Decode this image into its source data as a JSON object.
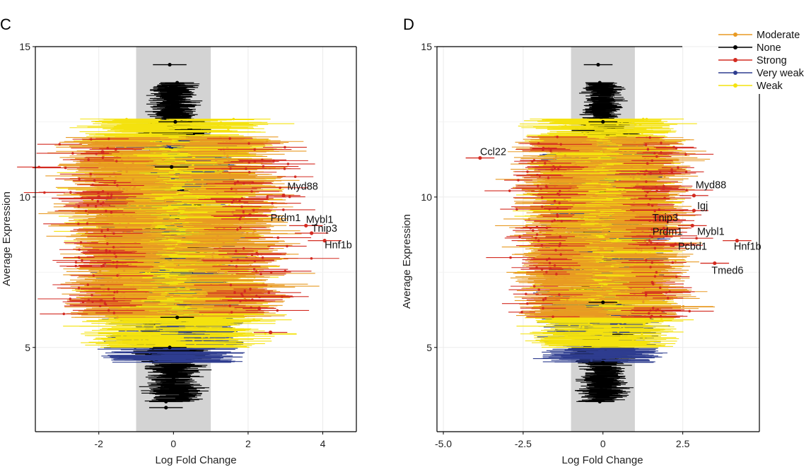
{
  "colors": {
    "background": "#ffffff",
    "band": "#d3d3d3",
    "grid": "#ebebeb",
    "axis": "#000000",
    "Moderate": "#e89a23",
    "None": "#000000",
    "Strong": "#d32a20",
    "Very weak": "#2e3d8f",
    "Weak": "#f4e20f"
  },
  "legend": {
    "position": "top-right",
    "items": [
      "Moderate",
      "None",
      "Strong",
      "Very weak",
      "Weak"
    ]
  },
  "chart_data": [
    {
      "panel": "C",
      "type": "scatter",
      "title": "",
      "xlabel": "Log Fold Change",
      "ylabel": "Average Expression",
      "xlim": [
        -3.7,
        4.9
      ],
      "ylim": [
        2.2,
        15.0
      ],
      "xticks": [
        -2,
        0,
        2,
        4
      ],
      "yticks": [
        5,
        10,
        15
      ],
      "grid": true,
      "shaded_band": [
        -1,
        1
      ],
      "series": [
        {
          "name": "None",
          "points": [
            [
              -0.1,
              14.4
            ],
            [
              0.1,
              13.8
            ],
            [
              0.05,
              12.5
            ],
            [
              -0.05,
              11.0
            ],
            [
              0.1,
              6.0
            ],
            [
              -0.1,
              5.0
            ],
            [
              0.0,
              4.0
            ],
            [
              -0.2,
              3.2
            ],
            [
              -0.2,
              3.0
            ]
          ]
        },
        {
          "name": "Strong",
          "points": [
            [
              2.95,
              10.05
            ],
            [
              3.55,
              9.05
            ],
            [
              3.7,
              8.8
            ],
            [
              4.05,
              8.55
            ],
            [
              2.6,
              5.5
            ],
            [
              2.3,
              6.3
            ],
            [
              -1.9,
              11.5
            ],
            [
              -2.0,
              10.0
            ],
            [
              2.05,
              9.4
            ]
          ]
        }
      ],
      "labels": [
        {
          "text": "Myd88",
          "x": 3.05,
          "y": 10.15,
          "target_x": 2.95,
          "target_y": 10.05
        },
        {
          "text": "Prdm1",
          "x": 2.6,
          "y": 9.1,
          "target_x": 2.6,
          "target_y": 9.1
        },
        {
          "text": "Mybl1",
          "x": 3.55,
          "y": 9.05,
          "target_x": 3.55,
          "target_y": 9.05
        },
        {
          "text": "Tnip3",
          "x": 3.7,
          "y": 8.75,
          "target_x": 3.7,
          "target_y": 8.75
        },
        {
          "text": "Hnf1b",
          "x": 4.05,
          "y": 8.2,
          "target_x": 4.05,
          "target_y": 8.2
        }
      ]
    },
    {
      "panel": "D",
      "type": "scatter",
      "title": "",
      "xlabel": "Log Fold Change",
      "ylabel": "Average Expression",
      "xlim": [
        -5.2,
        4.9
      ],
      "ylim": [
        2.2,
        15.0
      ],
      "xticks": [
        -5.0,
        -2.5,
        0,
        2.5
      ],
      "xticklabels": [
        "-5.0",
        "-2.5",
        "0",
        "2.5"
      ],
      "yticks": [
        5,
        10,
        15
      ],
      "grid": true,
      "shaded_band": [
        -1,
        1
      ],
      "series": [
        {
          "name": "None",
          "points": [
            [
              -0.15,
              14.4
            ],
            [
              -0.1,
              13.8
            ],
            [
              0.0,
              12.5
            ],
            [
              0.0,
              6.5
            ],
            [
              0.0,
              4.5
            ],
            [
              0.0,
              3.5
            ],
            [
              -0.1,
              3.2
            ]
          ]
        },
        {
          "name": "Strong",
          "points": [
            [
              -3.85,
              11.3
            ],
            [
              2.85,
              10.05
            ],
            [
              2.85,
              9.55
            ],
            [
              2.8,
              9.05
            ],
            [
              2.2,
              8.4
            ],
            [
              3.5,
              7.8
            ],
            [
              4.2,
              8.55
            ]
          ]
        }
      ],
      "labels": [
        {
          "text": "Ccl22",
          "x": -3.85,
          "y": 11.3,
          "target_x": -3.85,
          "target_y": 11.3
        },
        {
          "text": "Myd88",
          "x": 2.9,
          "y": 10.2,
          "target_x": 2.85,
          "target_y": 10.05
        },
        {
          "text": "Igj",
          "x": 2.95,
          "y": 9.5,
          "target_x": 2.85,
          "target_y": 9.55
        },
        {
          "text": "Tnip3",
          "x": 1.55,
          "y": 9.1,
          "target_x": 1.55,
          "target_y": 9.1
        },
        {
          "text": "Prdm1",
          "x": 1.55,
          "y": 8.65,
          "target_x": 1.55,
          "target_y": 8.65
        },
        {
          "text": "Mybl1",
          "x": 2.95,
          "y": 8.65,
          "target_x": 2.8,
          "target_y": 9.05
        },
        {
          "text": "Pcbd1",
          "x": 2.35,
          "y": 8.15,
          "target_x": 2.2,
          "target_y": 8.4
        },
        {
          "text": "Hnf1b",
          "x": 4.1,
          "y": 8.15,
          "target_x": 4.2,
          "target_y": 8.55
        },
        {
          "text": "Tmed6",
          "x": 3.4,
          "y": 7.35,
          "target_x": 3.5,
          "target_y": 7.8
        }
      ]
    }
  ]
}
